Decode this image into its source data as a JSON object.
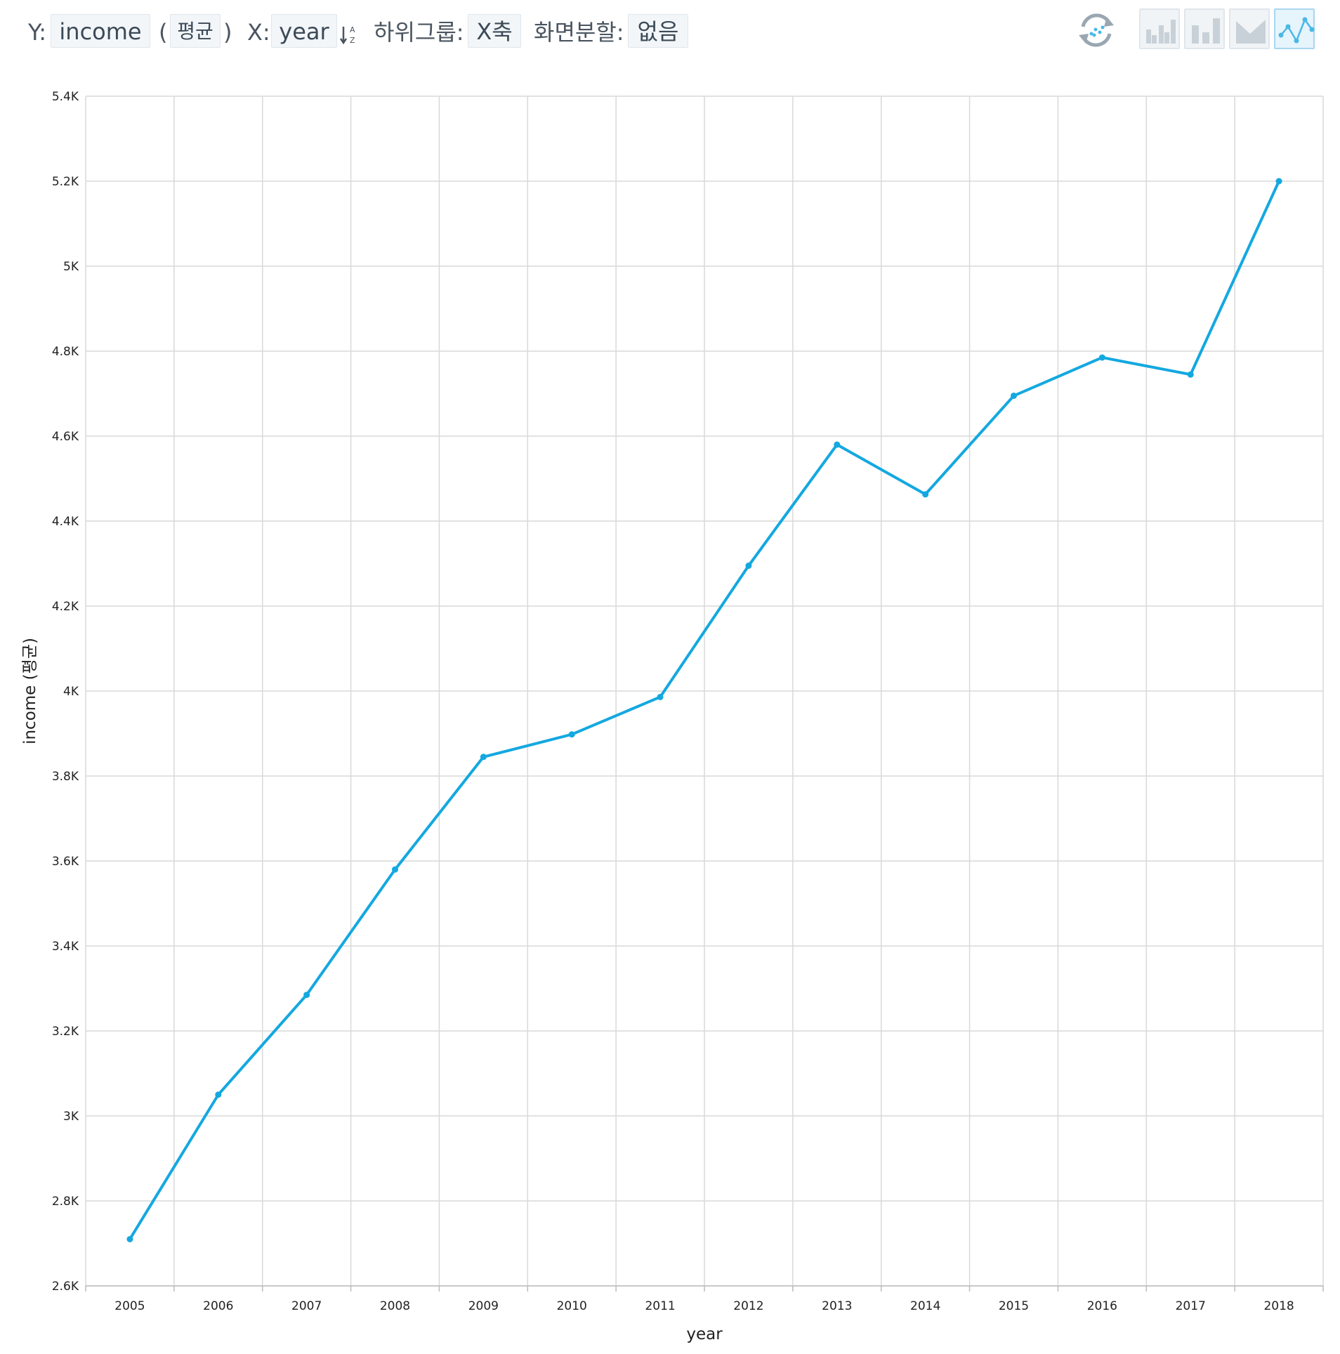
{
  "toolbar": {
    "y_label": "Y:",
    "y_field": "income",
    "open_paren": "(",
    "aggregation": "평균",
    "close_paren": ")",
    "x_label": "X:",
    "x_field": "year",
    "subgroup_label": "하위그룹:",
    "subgroup_value": "X축",
    "split_label": "화면분할:",
    "split_value": "없음",
    "chart_type_buttons": [
      "grouped-bar-chart-icon",
      "stacked-bar-chart-icon",
      "area-chart-icon",
      "line-chart-icon"
    ],
    "active_chart_type": "line-chart-icon",
    "accent_color": "#14a8e0"
  },
  "chart_data": {
    "type": "line",
    "x": [
      "2005",
      "2006",
      "2007",
      "2008",
      "2009",
      "2010",
      "2011",
      "2012",
      "2013",
      "2014",
      "2015",
      "2016",
      "2017",
      "2018"
    ],
    "series": [
      {
        "values": [
          2710,
          3050,
          3285,
          3580,
          3845,
          3898,
          3986,
          4295,
          4580,
          4463,
          4695,
          4785,
          4745,
          5200
        ]
      }
    ],
    "xlabel": "year",
    "ylabel": "income (평균)",
    "ylim": [
      2600,
      5400
    ],
    "yticks": [
      2600,
      2800,
      3000,
      3200,
      3400,
      3600,
      3800,
      4000,
      4200,
      4400,
      4600,
      4800,
      5000,
      5200,
      5400
    ],
    "ytick_labels": [
      "2.6K",
      "2.8K",
      "3K",
      "3.2K",
      "3.4K",
      "3.6K",
      "3.8K",
      "4K",
      "4.2K",
      "4.4K",
      "4.6K",
      "4.8K",
      "5K",
      "5.2K",
      "5.4K"
    ],
    "grid": true,
    "line_color": "#14a8e0"
  }
}
